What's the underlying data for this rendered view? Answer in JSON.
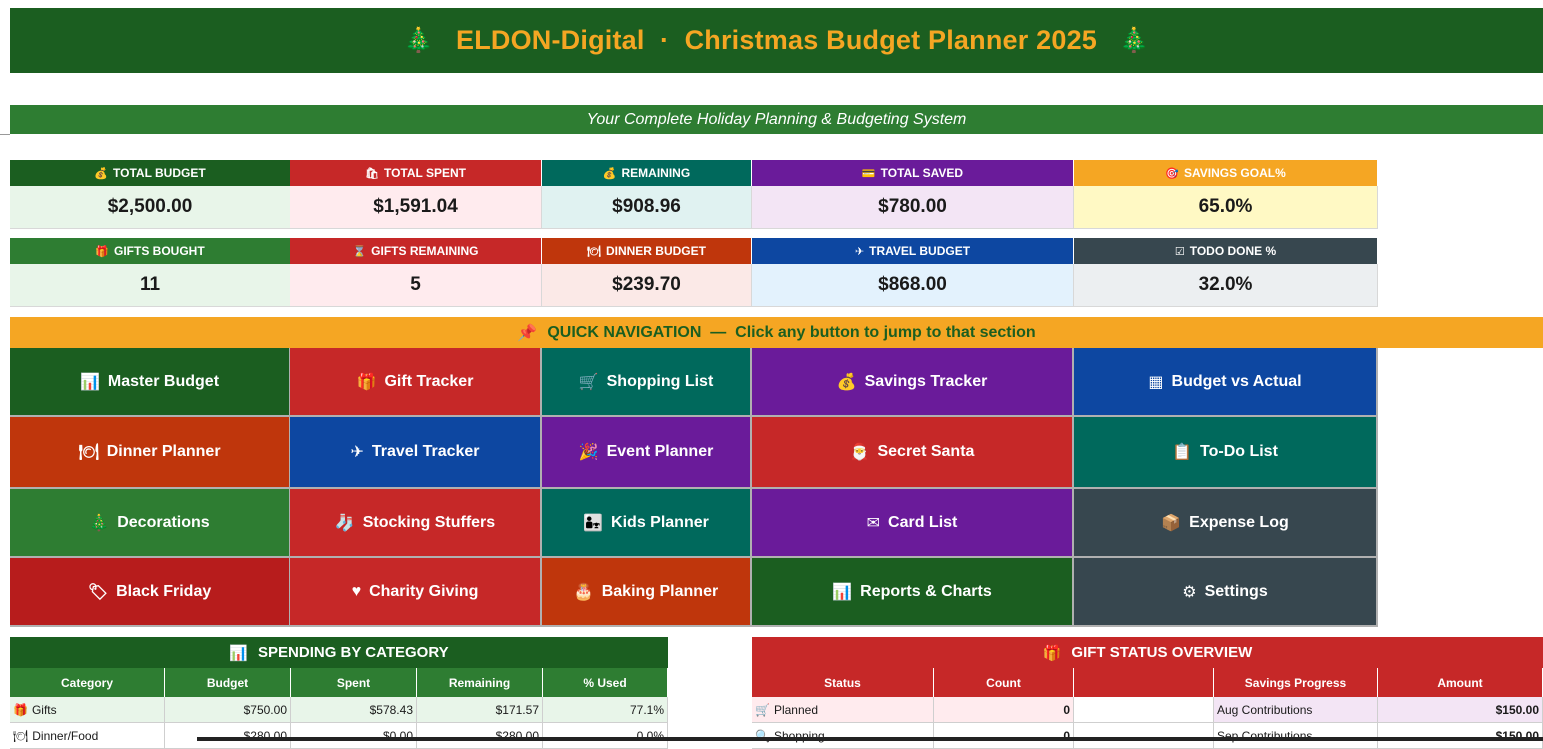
{
  "header": {
    "title": "ELDON-Digital  ·  Christmas Budget Planner 2025",
    "left_icon": "tree-icon",
    "right_icon": "tree-icon",
    "tree_glyph": "🎄",
    "subtitle": "Your Complete Holiday Planning & Budgeting System",
    "title_color": "#f5a623",
    "bg_color": "#1b5e20"
  },
  "kpis_row1": [
    {
      "label": "TOTAL BUDGET",
      "icon": "💰",
      "value": "$2,500.00"
    },
    {
      "label": "TOTAL SPENT",
      "icon": "🛍",
      "value": "$1,591.04"
    },
    {
      "label": "REMAINING",
      "icon": "💰",
      "value": "$908.96"
    },
    {
      "label": "TOTAL SAVED",
      "icon": "💳",
      "value": "$780.00"
    },
    {
      "label": "SAVINGS GOAL%",
      "icon": "🎯",
      "value": "65.0%"
    }
  ],
  "kpis_row2": [
    {
      "label": "GIFTS BOUGHT",
      "icon": "🎁",
      "value": "11"
    },
    {
      "label": "GIFTS REMAINING",
      "icon": "⌛",
      "value": "5"
    },
    {
      "label": "DINNER BUDGET",
      "icon": "🍽",
      "value": "$239.70"
    },
    {
      "label": "TRAVEL BUDGET",
      "icon": "✈",
      "value": "$868.00"
    },
    {
      "label": "TODO DONE %",
      "icon": "☑",
      "value": "32.0%"
    }
  ],
  "nav": {
    "header_icon": "📌",
    "header": "QUICK NAVIGATION  —  Click any button to jump to that section",
    "buttons": [
      {
        "label": "Master Budget",
        "icon": "📊"
      },
      {
        "label": "Gift Tracker",
        "icon": "🎁"
      },
      {
        "label": "Shopping List",
        "icon": "🛒"
      },
      {
        "label": "Savings Tracker",
        "icon": "💰"
      },
      {
        "label": "Budget vs Actual",
        "icon": "▦"
      },
      {
        "label": "Dinner Planner",
        "icon": "🍽"
      },
      {
        "label": "Travel Tracker",
        "icon": "✈"
      },
      {
        "label": "Event Planner",
        "icon": "🎉"
      },
      {
        "label": "Secret Santa",
        "icon": "🎅"
      },
      {
        "label": "To-Do List",
        "icon": "📋"
      },
      {
        "label": "Decorations",
        "icon": "🎄"
      },
      {
        "label": "Stocking Stuffers",
        "icon": "🧦"
      },
      {
        "label": "Kids Planner",
        "icon": "👨‍👧"
      },
      {
        "label": "Card List",
        "icon": "✉"
      },
      {
        "label": "Expense Log",
        "icon": "📦"
      },
      {
        "label": "Black Friday",
        "icon": "🏷"
      },
      {
        "label": "Charity Giving",
        "icon": "♥"
      },
      {
        "label": "Baking Planner",
        "icon": "🎂"
      },
      {
        "label": "Reports & Charts",
        "icon": "📊"
      },
      {
        "label": "Settings",
        "icon": "⚙"
      }
    ]
  },
  "spending": {
    "title_icon": "📊",
    "title": "SPENDING BY CATEGORY",
    "columns": [
      "Category",
      "Budget",
      "Spent",
      "Remaining",
      "% Used"
    ],
    "rows": [
      {
        "icon": "🎁",
        "category": "Gifts",
        "budget": "$750.00",
        "spent": "$578.43",
        "remaining": "$171.57",
        "used": "77.1%"
      },
      {
        "icon": "🍽",
        "category": "Dinner/Food",
        "budget": "$280.00",
        "spent": "$0.00",
        "remaining": "$280.00",
        "used": "0.0%"
      }
    ]
  },
  "gift_status": {
    "title_icon": "🎁",
    "title": "GIFT STATUS OVERVIEW",
    "columns": [
      "Status",
      "Count",
      "",
      "Savings Progress",
      "Amount"
    ],
    "rows": [
      {
        "icon": "🛒",
        "status": "Planned",
        "count": "0",
        "progress": "Aug Contributions",
        "amount": "$150.00"
      },
      {
        "icon": "🔍",
        "status": "Shopping",
        "count": "0",
        "progress": "Sep Contributions",
        "amount": "$150.00"
      }
    ]
  }
}
